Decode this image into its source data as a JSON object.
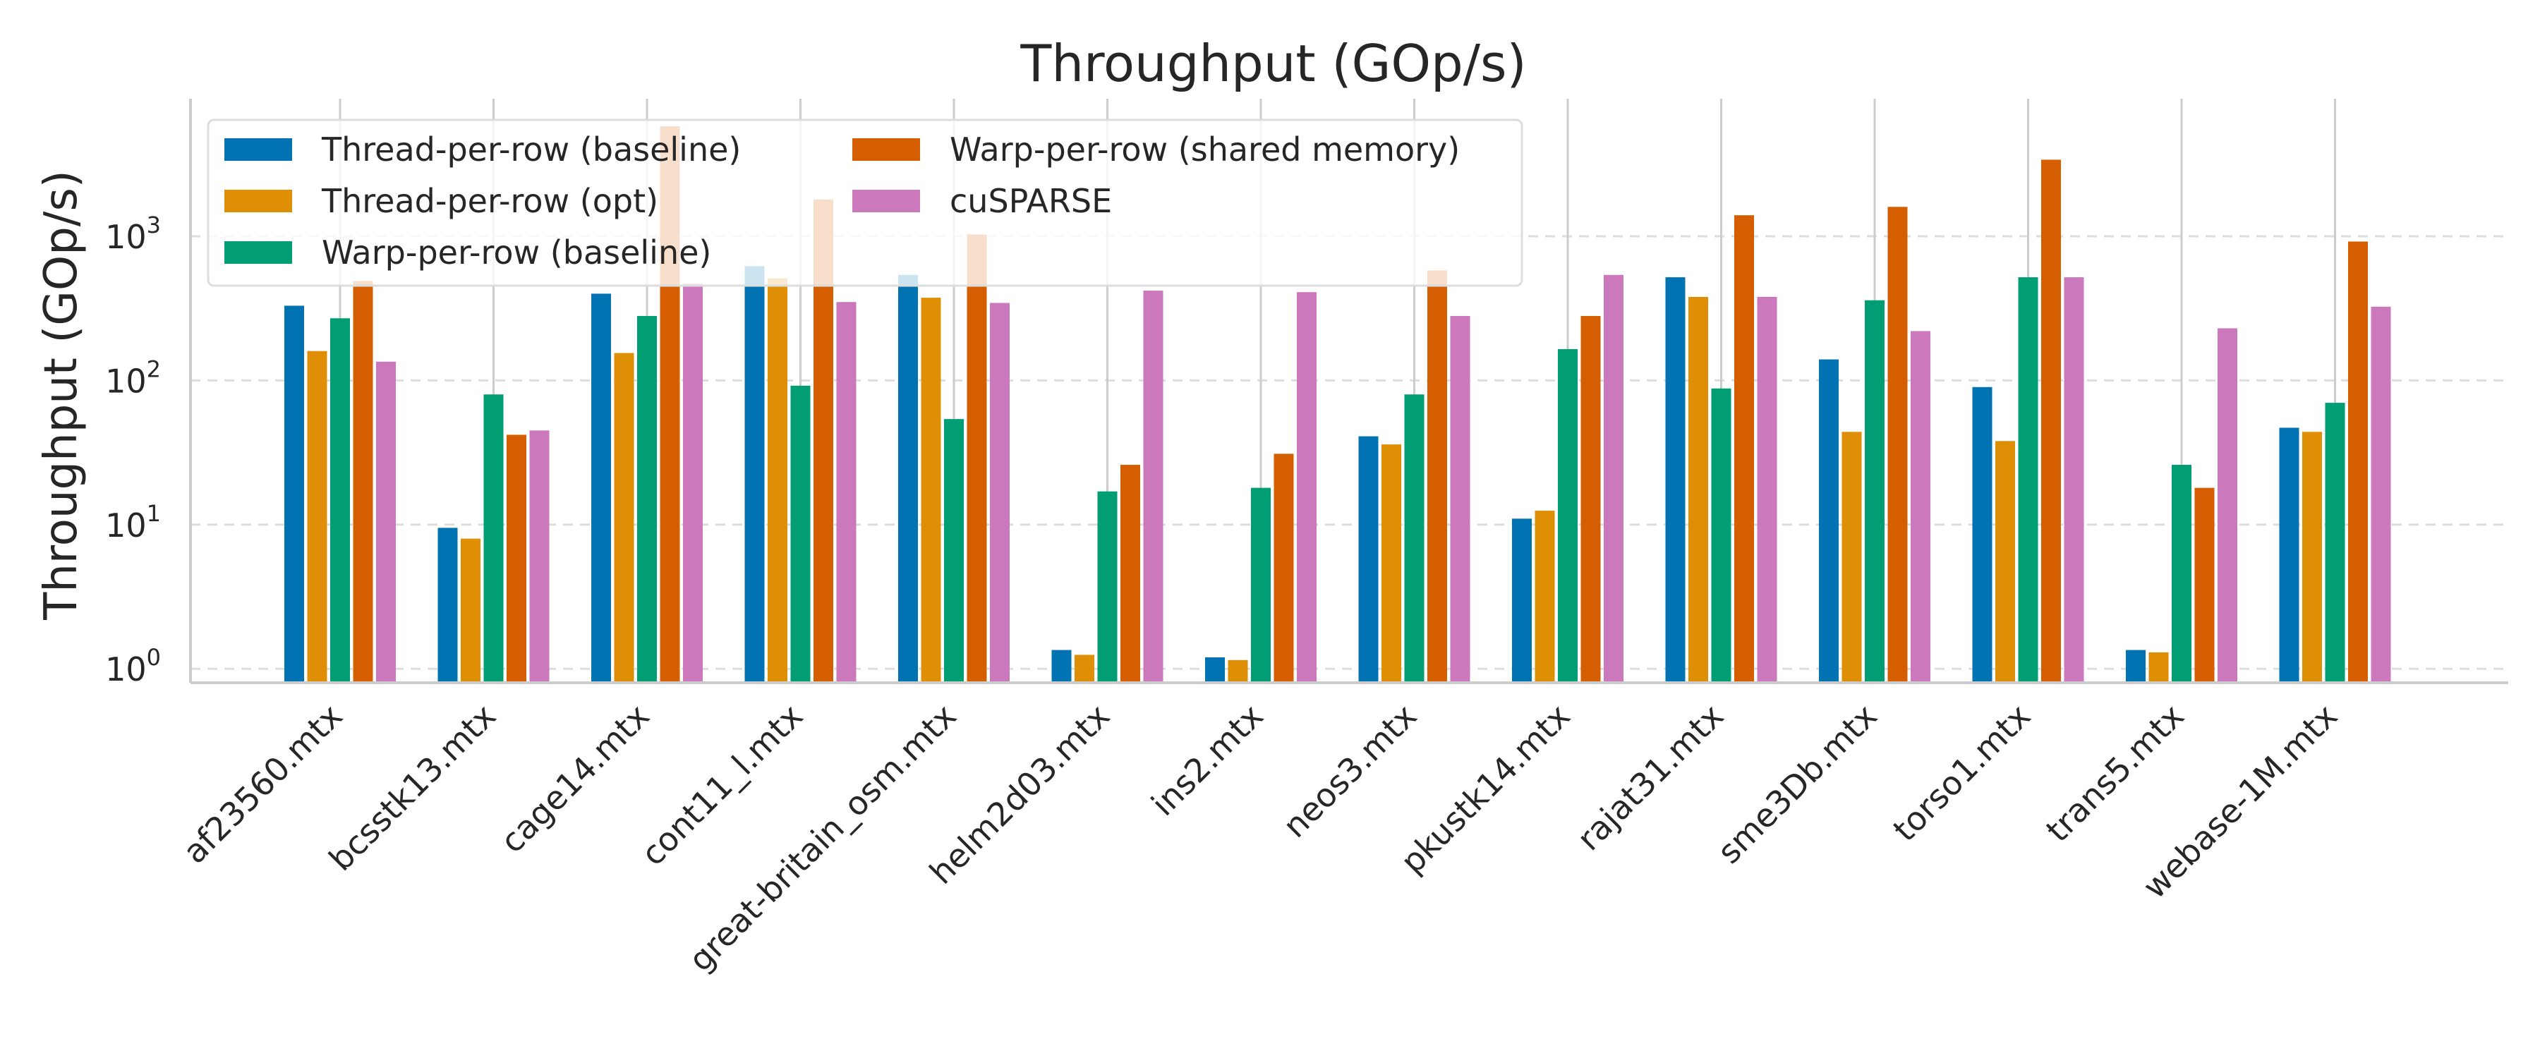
{
  "chart_data": {
    "type": "bar",
    "title": "Throughput (GOp/s)",
    "xlabel": "",
    "ylabel": "Throughput (GOp/s)",
    "yscale": "log",
    "ylim": [
      0.8,
      9000
    ],
    "yticks": [
      {
        "value": 1,
        "base": "10",
        "exp": "0"
      },
      {
        "value": 10,
        "base": "10",
        "exp": "1"
      },
      {
        "value": 100,
        "base": "10",
        "exp": "2"
      },
      {
        "value": 1000,
        "base": "10",
        "exp": "3"
      }
    ],
    "grid": "y-major dashed, x vertical",
    "legend_position": "top-left",
    "categories": [
      "af23560.mtx",
      "bcsstk13.mtx",
      "cage14.mtx",
      "cont11_l.mtx",
      "great-britain_osm.mtx",
      "helm2d03.mtx",
      "ins2.mtx",
      "neos3.mtx",
      "pkustk14.mtx",
      "rajat31.mtx",
      "sme3Db.mtx",
      "torso1.mtx",
      "trans5.mtx",
      "webase-1M.mtx"
    ],
    "series": [
      {
        "name": "Thread-per-row (baseline)",
        "color": "#0173b2",
        "values": [
          330,
          9.5,
          400,
          620,
          540,
          1.35,
          1.2,
          41,
          11,
          520,
          140,
          90,
          1.35,
          47
        ]
      },
      {
        "name": "Thread-per-row (opt)",
        "color": "#de8f05",
        "values": [
          160,
          8,
          155,
          510,
          375,
          1.25,
          1.15,
          36,
          12.5,
          380,
          44,
          38,
          1.3,
          44
        ]
      },
      {
        "name": "Warp-per-row (baseline)",
        "color": "#029e73",
        "values": [
          270,
          80,
          280,
          92,
          54,
          17,
          18,
          80,
          165,
          88,
          360,
          520,
          26,
          70
        ]
      },
      {
        "name": "Warp-per-row (shared memory)",
        "color": "#d55e00",
        "values": [
          490,
          42,
          5800,
          1800,
          1030,
          26,
          31,
          580,
          280,
          1400,
          1600,
          3400,
          18,
          920
        ]
      },
      {
        "name": "cuSPARSE",
        "color": "#cc78bc",
        "values": [
          135,
          45,
          470,
          350,
          345,
          420,
          410,
          280,
          540,
          380,
          220,
          520,
          230,
          325
        ]
      }
    ]
  }
}
